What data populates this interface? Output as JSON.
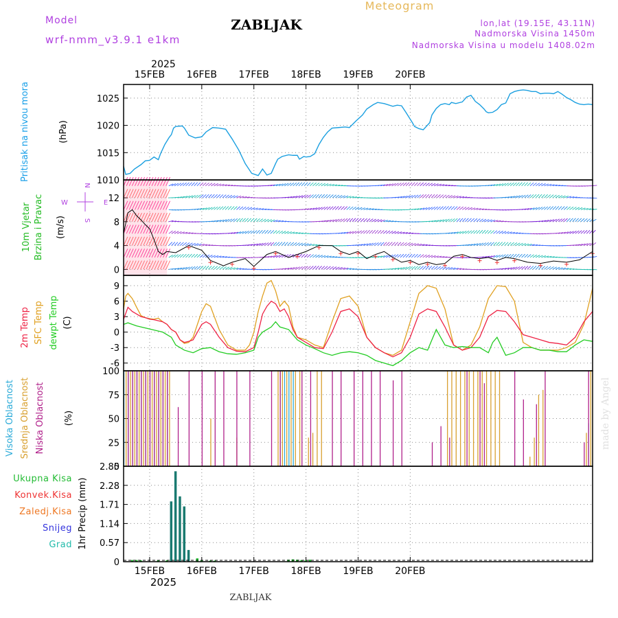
{
  "header": {
    "meteogram_label": "Meteogram",
    "model_label": "Model",
    "model_name": "wrf-nmm_v3.9.1 e1km",
    "station_title": "ZABLJAK",
    "lonlat": "lon,lat (19.15E, 43.11N)",
    "altitude": "Nadmorska Visina 1450m",
    "model_altitude": "Nadmorska Visina u modelu 1408.02m"
  },
  "footer": {
    "station_name": "ZABLJAK",
    "watermark": "made by Angel"
  },
  "time_axis": {
    "year": "2025",
    "day_labels": [
      "15FEB",
      "16FEB",
      "17FEB",
      "18FEB",
      "19FEB",
      "20FEB"
    ]
  },
  "colors": {
    "pressure": "#1a9fe0",
    "wind_label": "#22bb22",
    "temp2m": "#ee2244",
    "sfc_temp": "#e0a020",
    "dewpoint": "#22cc22",
    "high_cloud": "#2aaad8",
    "mid_cloud": "#d8a030",
    "low_cloud": "#b0208a",
    "rain_total": "#22bb33",
    "rain_conv": "#ee3333",
    "freezing_rain": "#ee7722",
    "snow": "#3333dd",
    "hail": "#22bbaa",
    "compass": "#b040e0"
  },
  "panels": {
    "pressure": {
      "label1": "Pritisak na nivou mora",
      "unit": "(hPa)",
      "ticks": [
        "1010",
        "1015",
        "1020",
        "1025"
      ]
    },
    "wind": {
      "label1": "10m Vjetar",
      "label2": "Brzina i Pravac",
      "unit": "(m/s)",
      "ticks": [
        "0",
        "4",
        "8",
        "12"
      ],
      "compass_n": "N",
      "compass_s": "S",
      "compass_e": "E",
      "compass_w": "W"
    },
    "temperature": {
      "label1": "2m Temp",
      "label2": "SFC Temp",
      "label3": "dewpt Temp",
      "unit": "(C)",
      "ticks": [
        "-6",
        "-3",
        "0",
        "3",
        "6",
        "9"
      ]
    },
    "cloud": {
      "label1": "Visoka Oblacnost",
      "label2": "Srednja Oblacnost",
      "label3": "Niska Oblacnost",
      "unit": "(%)",
      "ticks": [
        "0",
        "25",
        "50",
        "75",
        "100"
      ]
    },
    "precip": {
      "unit": "1hr Precip (mm)",
      "ticks": [
        "0",
        "0.57",
        "1.14",
        "1.71",
        "2.28",
        "2.85"
      ],
      "legend": [
        "Ukupna Kisa",
        "Konvek.Kisa",
        "Zaledj.Kisa",
        "Snijeg",
        "Grad"
      ]
    }
  },
  "chart_data": [
    {
      "type": "line",
      "name": "pressure",
      "x_unit": "hours from 14FEB 12:00",
      "ylim": [
        1010,
        1027
      ],
      "x": [
        0,
        1,
        3,
        5,
        8,
        10,
        12,
        14,
        16,
        17,
        19,
        21,
        22,
        23,
        24,
        27,
        28,
        30,
        33,
        36,
        38,
        41,
        44,
        47,
        50,
        53,
        56,
        59,
        62,
        64,
        66,
        68,
        70,
        71,
        73,
        76,
        78,
        80,
        81,
        83,
        84,
        86,
        88,
        90,
        92,
        94,
        96,
        99,
        102,
        104,
        107,
        110,
        112,
        115,
        117,
        120,
        124,
        126,
        128,
        130,
        133,
        134,
        136,
        138,
        141,
        142,
        144,
        146,
        148,
        150,
        151,
        153,
        156,
        158,
        160,
        162,
        164,
        166,
        167,
        168,
        170,
        172,
        174,
        176,
        178,
        180,
        182,
        184,
        186,
        188,
        190,
        192,
        194,
        196,
        198,
        200,
        202,
        204,
        206,
        208,
        210,
        212,
        214,
        216
      ],
      "values": [
        1012.5,
        1011.0,
        1011.2,
        1012.0,
        1012.8,
        1013.5,
        1013.6,
        1014.2,
        1013.7,
        1014.8,
        1016.5,
        1017.8,
        1018.3,
        1019.5,
        1019.8,
        1019.9,
        1019.5,
        1018.2,
        1017.7,
        1017.9,
        1018.8,
        1019.6,
        1019.5,
        1019.3,
        1017.5,
        1015.5,
        1013.0,
        1011.2,
        1010.8,
        1012.0,
        1010.9,
        1011.2,
        1013.0,
        1013.8,
        1014.3,
        1014.6,
        1014.5,
        1014.5,
        1013.8,
        1014.3,
        1014.2,
        1014.3,
        1014.8,
        1016.5,
        1017.8,
        1018.8,
        1019.5,
        1019.6,
        1019.7,
        1019.6,
        1020.8,
        1021.9,
        1023.0,
        1023.8,
        1024.2,
        1024.0,
        1023.5,
        1023.7,
        1023.6,
        1022.4,
        1020.5,
        1019.8,
        1019.4,
        1019.2,
        1020.5,
        1021.9,
        1023.1,
        1023.8,
        1024.0,
        1023.8,
        1024.2,
        1024.0,
        1024.3,
        1025.2,
        1025.5,
        1024.4,
        1023.8,
        1023.0,
        1022.5,
        1022.3,
        1022.4,
        1022.9,
        1023.8,
        1024.1,
        1025.8,
        1026.2,
        1026.4,
        1026.5,
        1026.4,
        1026.2,
        1026.2,
        1025.8,
        1025.9,
        1025.9,
        1025.8,
        1026.2,
        1025.7,
        1025.1,
        1024.7,
        1024.2,
        1023.9,
        1023.8,
        1023.9,
        1023.8
      ],
      "ylabel": "(hPa)"
    },
    {
      "type": "line",
      "name": "wind_speed",
      "ylim": [
        -1,
        15
      ],
      "x": [
        0,
        2,
        4,
        6,
        8,
        10,
        12,
        14,
        16,
        18,
        20,
        24,
        30,
        36,
        40,
        46,
        50,
        56,
        60,
        66,
        70,
        76,
        80,
        84,
        90,
        96,
        100,
        104,
        108,
        112,
        116,
        120,
        124,
        128,
        132,
        136,
        140,
        144,
        148,
        152,
        156,
        160,
        164,
        168,
        172,
        176,
        180,
        186,
        192,
        198,
        204,
        210,
        216
      ],
      "values": [
        6.0,
        9.5,
        10.0,
        9.0,
        8.3,
        7.5,
        6.8,
        5.0,
        3.0,
        2.5,
        3.0,
        2.8,
        4.0,
        3.2,
        1.5,
        0.6,
        1.2,
        1.8,
        0.5,
        2.5,
        3.0,
        2.0,
        2.5,
        3.0,
        4.0,
        4.0,
        3.0,
        2.5,
        3.0,
        1.8,
        2.5,
        3.0,
        2.0,
        1.2,
        1.5,
        0.8,
        1.2,
        0.8,
        1.0,
        2.2,
        2.5,
        2.0,
        1.8,
        2.0,
        1.5,
        2.0,
        1.8,
        1.2,
        1.0,
        1.4,
        1.2,
        1.6,
        3.0
      ],
      "ylabel": "(m/s)"
    },
    {
      "type": "line",
      "name": "temperature",
      "ylim": [
        -7,
        11
      ],
      "series": [
        {
          "name": "SFC Temp",
          "x": [
            0,
            1,
            2,
            4,
            6,
            8,
            10,
            12,
            14,
            16,
            18,
            20,
            22,
            24,
            26,
            28,
            30,
            32,
            34,
            36,
            38,
            40,
            44,
            48,
            52,
            56,
            58,
            60,
            62,
            64,
            66,
            68,
            70,
            72,
            74,
            76,
            78,
            80,
            84,
            88,
            92,
            96,
            100,
            104,
            108,
            112,
            116,
            120,
            124,
            128,
            132,
            136,
            140,
            144,
            148,
            152,
            156,
            160,
            164,
            168,
            172,
            176,
            180,
            184,
            188,
            192,
            196,
            200,
            204,
            208,
            212,
            216
          ],
          "values": [
            4.5,
            7.0,
            7.5,
            6.5,
            4.8,
            3.2,
            2.8,
            2.6,
            2.5,
            2.7,
            2.0,
            1.5,
            0.5,
            0.0,
            -1.5,
            -2.2,
            -2.0,
            -1.0,
            1.5,
            4.0,
            5.5,
            5.0,
            0.5,
            -2.5,
            -3.5,
            -3.5,
            -2.5,
            0.0,
            4.0,
            7.0,
            9.5,
            10.0,
            8.0,
            5.0,
            6.0,
            5.0,
            1.0,
            -1.0,
            -1.5,
            -2.5,
            -3.0,
            2.0,
            6.5,
            7.0,
            5.0,
            -1.0,
            -3.0,
            -4.0,
            -4.5,
            -3.5,
            2.0,
            7.5,
            9.0,
            8.5,
            4.5,
            -2.5,
            -3.5,
            -2.5,
            1.0,
            6.5,
            9.0,
            8.8,
            6.0,
            -2.0,
            -3.0,
            -3.5,
            -3.5,
            -3.5,
            -3.0,
            -2.0,
            1.5,
            8.5
          ],
          "color": "#e0a020"
        },
        {
          "name": "2m Temp",
          "x": [
            0,
            2,
            4,
            6,
            8,
            10,
            12,
            14,
            16,
            18,
            20,
            22,
            24,
            26,
            28,
            30,
            32,
            34,
            36,
            38,
            40,
            44,
            48,
            52,
            56,
            60,
            62,
            64,
            66,
            68,
            70,
            72,
            74,
            76,
            78,
            80,
            84,
            88,
            92,
            96,
            100,
            104,
            108,
            112,
            116,
            120,
            124,
            128,
            132,
            136,
            140,
            144,
            148,
            152,
            156,
            160,
            164,
            168,
            172,
            176,
            180,
            184,
            188,
            192,
            196,
            200,
            204,
            208,
            212,
            216
          ],
          "values": [
            2.5,
            4.8,
            4.0,
            3.5,
            3.0,
            2.8,
            2.5,
            2.4,
            2.2,
            2.0,
            1.5,
            0.5,
            0.0,
            -1.5,
            -2.0,
            -1.8,
            -1.5,
            0.0,
            1.5,
            2.0,
            1.5,
            -1.0,
            -3.0,
            -3.7,
            -3.8,
            -3.0,
            0.0,
            3.5,
            5.0,
            6.0,
            5.5,
            4.0,
            4.5,
            3.0,
            0.5,
            -1.0,
            -2.0,
            -3.0,
            -3.2,
            0.0,
            4.0,
            4.5,
            3.0,
            -1.0,
            -3.0,
            -4.0,
            -4.8,
            -4.0,
            -1.0,
            3.5,
            4.5,
            4.0,
            1.0,
            -2.5,
            -3.5,
            -3.0,
            -1.0,
            3.0,
            4.2,
            4.0,
            2.0,
            -0.5,
            -1.0,
            -1.5,
            -2.0,
            -2.2,
            -2.5,
            -1.0,
            2.0,
            4.0
          ],
          "color": "#ee2244"
        },
        {
          "name": "dewpt Temp",
          "x": [
            0,
            2,
            4,
            6,
            8,
            10,
            12,
            14,
            16,
            18,
            20,
            22,
            24,
            28,
            32,
            36,
            40,
            44,
            48,
            52,
            56,
            60,
            62,
            64,
            66,
            68,
            70,
            72,
            76,
            80,
            84,
            88,
            92,
            96,
            100,
            104,
            108,
            112,
            116,
            120,
            124,
            128,
            132,
            136,
            140,
            142,
            144,
            148,
            152,
            156,
            160,
            164,
            168,
            170,
            172,
            176,
            180,
            184,
            188,
            192,
            196,
            200,
            204,
            208,
            212,
            216
          ],
          "values": [
            1.5,
            1.8,
            1.5,
            1.2,
            1.0,
            0.8,
            0.6,
            0.4,
            0.2,
            0.0,
            -0.5,
            -1.0,
            -2.5,
            -3.5,
            -4.0,
            -3.2,
            -3.0,
            -3.8,
            -4.2,
            -4.3,
            -4.0,
            -3.5,
            -1.0,
            0.0,
            0.5,
            1.0,
            2.0,
            1.0,
            0.5,
            -1.5,
            -2.5,
            -3.2,
            -4.0,
            -4.5,
            -4.0,
            -3.8,
            -4.0,
            -4.5,
            -5.5,
            -6.0,
            -6.5,
            -5.5,
            -4.0,
            -3.0,
            -3.5,
            -1.5,
            0.5,
            -2.5,
            -3.0,
            -2.8,
            -3.0,
            -3.0,
            -4.0,
            -2.0,
            -1.0,
            -4.5,
            -4.0,
            -3.0,
            -3.0,
            -3.5,
            -3.5,
            -3.8,
            -3.8,
            -2.5,
            -1.5,
            -1.8
          ],
          "color": "#22cc22"
        }
      ],
      "ylabel": "(C)"
    },
    {
      "type": "bar",
      "name": "cloud_cover",
      "ylim": [
        0,
        100
      ],
      "series": [
        {
          "name": "Visoka Oblacnost",
          "x": [
            0,
            2,
            4,
            6,
            8,
            10,
            12,
            14,
            16,
            18,
            20,
            72,
            74,
            76,
            78,
            214
          ],
          "values": [
            100,
            100,
            100,
            100,
            100,
            100,
            100,
            100,
            100,
            100,
            100,
            100,
            100,
            100,
            100,
            45
          ],
          "color": "#2aaad8"
        },
        {
          "name": "Srednja Oblacnost",
          "x": [
            1,
            3,
            5,
            7,
            9,
            11,
            13,
            15,
            17,
            19,
            21,
            40,
            52,
            71,
            73,
            75,
            77,
            79,
            81,
            85,
            87,
            89,
            91,
            149,
            151,
            153,
            155,
            157,
            159,
            161,
            163,
            165,
            167,
            169,
            171,
            173,
            187,
            189,
            191,
            193,
            213,
            215
          ],
          "values": [
            100,
            100,
            100,
            100,
            100,
            100,
            100,
            100,
            100,
            100,
            100,
            50,
            30,
            100,
            100,
            100,
            100,
            100,
            100,
            30,
            35,
            100,
            100,
            100,
            100,
            100,
            100,
            100,
            100,
            100,
            100,
            100,
            100,
            100,
            100,
            100,
            10,
            30,
            75,
            80,
            35,
            100
          ],
          "color": "#d8a030"
        },
        {
          "name": "Niska Oblacnost",
          "x": [
            2,
            4,
            6,
            8,
            10,
            12,
            14,
            16,
            18,
            20,
            25,
            30,
            36,
            42,
            46,
            52,
            58,
            68,
            72,
            82,
            86,
            96,
            100,
            106,
            110,
            114,
            118,
            124,
            128,
            142,
            146,
            150,
            158,
            164,
            166,
            180,
            184,
            190,
            194,
            212,
            214
          ],
          "values": [
            100,
            100,
            100,
            100,
            100,
            100,
            100,
            100,
            100,
            100,
            62,
            100,
            100,
            100,
            100,
            100,
            100,
            100,
            100,
            100,
            100,
            100,
            100,
            100,
            100,
            100,
            100,
            90,
            100,
            25,
            42,
            30,
            100,
            100,
            87,
            100,
            70,
            65,
            100,
            25,
            100
          ],
          "color": "#b0208a"
        }
      ],
      "ylabel": "(%)"
    },
    {
      "type": "bar",
      "name": "precipitation",
      "ylim": [
        0,
        2.85
      ],
      "series": [
        {
          "name": "Ukupna Kisa",
          "x": [
            4,
            6,
            8,
            16,
            20,
            22,
            24,
            26,
            28,
            30,
            34,
            36,
            40,
            42,
            76,
            78,
            80,
            82,
            84,
            86
          ],
          "values": [
            0.05,
            0.05,
            0.04,
            0.04,
            0.04,
            1.8,
            2.7,
            1.95,
            1.65,
            0.35,
            0.1,
            0.05,
            0.03,
            0.03,
            0.06,
            0.07,
            0.06,
            0.05,
            0.04,
            0.06
          ],
          "color": "#22bb33"
        }
      ],
      "ylabel": "1hr Precip (mm)"
    }
  ]
}
